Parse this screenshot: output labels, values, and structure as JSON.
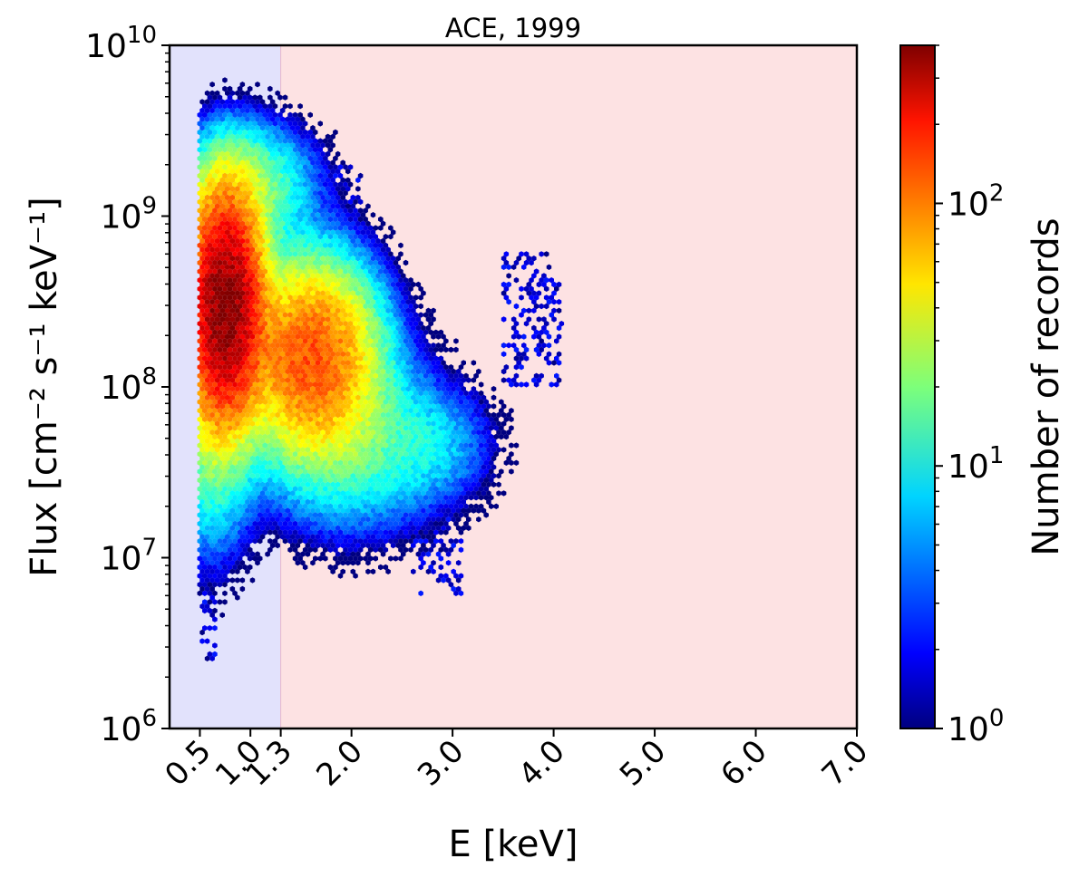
{
  "chart_data": {
    "type": "heatmap",
    "subtype": "hexbin",
    "title": "ACE, 1999",
    "xlabel": "E [keV]",
    "ylabel": "Flux [cm⁻² s⁻¹ keV⁻¹]",
    "xlim": [
      0.2,
      7.0
    ],
    "ylim": [
      1000000,
      10000000000
    ],
    "yscale": "log",
    "xticks": [
      0.5,
      1.0,
      1.3,
      2.0,
      3.0,
      4.0,
      5.0,
      6.0,
      7.0
    ],
    "xtick_labels": [
      "0.5",
      "1.0",
      "1.3",
      "2.0",
      "3.0",
      "4.0",
      "5.0",
      "6.0",
      "7.0"
    ],
    "yticks": [
      1000000,
      10000000,
      100000000,
      1000000000,
      10000000000
    ],
    "ytick_labels": [
      {
        "base": "10",
        "exp": "6"
      },
      {
        "base": "10",
        "exp": "7"
      },
      {
        "base": "10",
        "exp": "8"
      },
      {
        "base": "10",
        "exp": "9"
      },
      {
        "base": "10",
        "exp": "10"
      }
    ],
    "shaded_regions": [
      {
        "x0": 0.2,
        "x1": 1.3,
        "color": "#e2e2fc"
      },
      {
        "x0": 1.3,
        "x1": 7.0,
        "color": "#fde2e3"
      }
    ],
    "colorbar": {
      "label": "Number of records",
      "scale": "log",
      "range": [
        1,
        400
      ],
      "colormap": "jet",
      "ticks": [
        1,
        10,
        100
      ],
      "tick_labels": [
        {
          "base": "10",
          "exp": "0"
        },
        {
          "base": "10",
          "exp": "1"
        },
        {
          "base": "10",
          "exp": "2"
        }
      ]
    },
    "density_clusters": [
      {
        "x": 0.75,
        "y": 300000000,
        "peak_count": 400,
        "x_spread": 0.2,
        "y_spread_dex": 0.35
      },
      {
        "x": 1.6,
        "y": 150000000,
        "peak_count": 120,
        "x_spread": 0.35,
        "y_spread_dex": 0.3
      },
      {
        "x": 1.0,
        "y": 1500000000,
        "peak_count": 20,
        "x_spread": 0.35,
        "y_spread_dex": 0.2
      },
      {
        "x": 0.6,
        "y": 60000000,
        "peak_count": 20,
        "x_spread": 0.25,
        "y_spread_dex": 0.4
      },
      {
        "x": 2.0,
        "y": 50000000,
        "peak_count": 15,
        "x_spread": 0.5,
        "y_spread_dex": 0.3
      },
      {
        "x": 2.8,
        "y": 45000000,
        "peak_count": 6,
        "x_spread": 0.35,
        "y_spread_dex": 0.2
      }
    ],
    "sparse_tails": [
      {
        "x_range": [
          1.8,
          2.1
        ],
        "y_range": [
          400000000,
          2000000000
        ]
      },
      {
        "x_range": [
          3.5,
          4.1
        ],
        "y_range": [
          100000000,
          600000000
        ]
      },
      {
        "x_range": [
          2.6,
          3.1
        ],
        "y_range": [
          6000000,
          20000000
        ]
      },
      {
        "x_range": [
          0.5,
          0.65
        ],
        "y_range": [
          2500000,
          10000000
        ]
      },
      {
        "x_range": [
          0.7,
          1.1
        ],
        "y_range": [
          2000000000,
          4800000000
        ]
      }
    ]
  }
}
